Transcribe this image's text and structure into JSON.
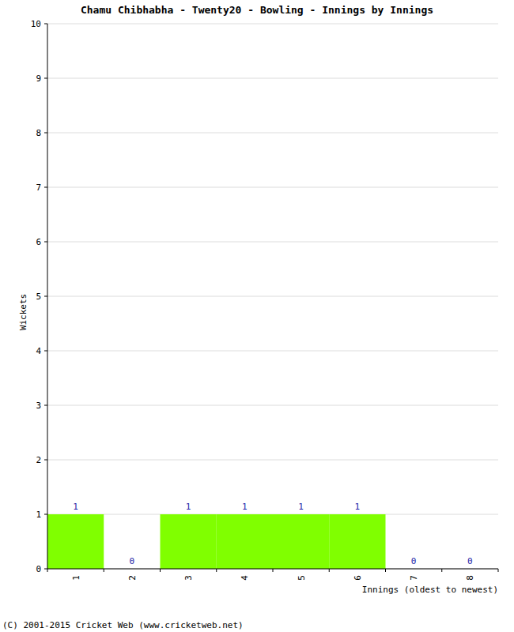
{
  "chart_data": {
    "type": "bar",
    "title": "Chamu Chibhabha - Twenty20 - Bowling - Innings by Innings",
    "xlabel": "Innings (oldest to newest)",
    "ylabel": "Wickets",
    "annotations": [
      "(C) 2001-2015 Cricket Web (www.cricketweb.net)"
    ],
    "categories": [
      "1",
      "2",
      "3",
      "4",
      "5",
      "6",
      "7",
      "8"
    ],
    "values": [
      1,
      0,
      1,
      1,
      1,
      1,
      0,
      0
    ],
    "color": "#80ff00",
    "ylim": [
      0,
      10
    ],
    "yticks": [
      0,
      1,
      2,
      3,
      4,
      5,
      6,
      7,
      8,
      9,
      10
    ],
    "grid": true,
    "data_labels": true
  }
}
